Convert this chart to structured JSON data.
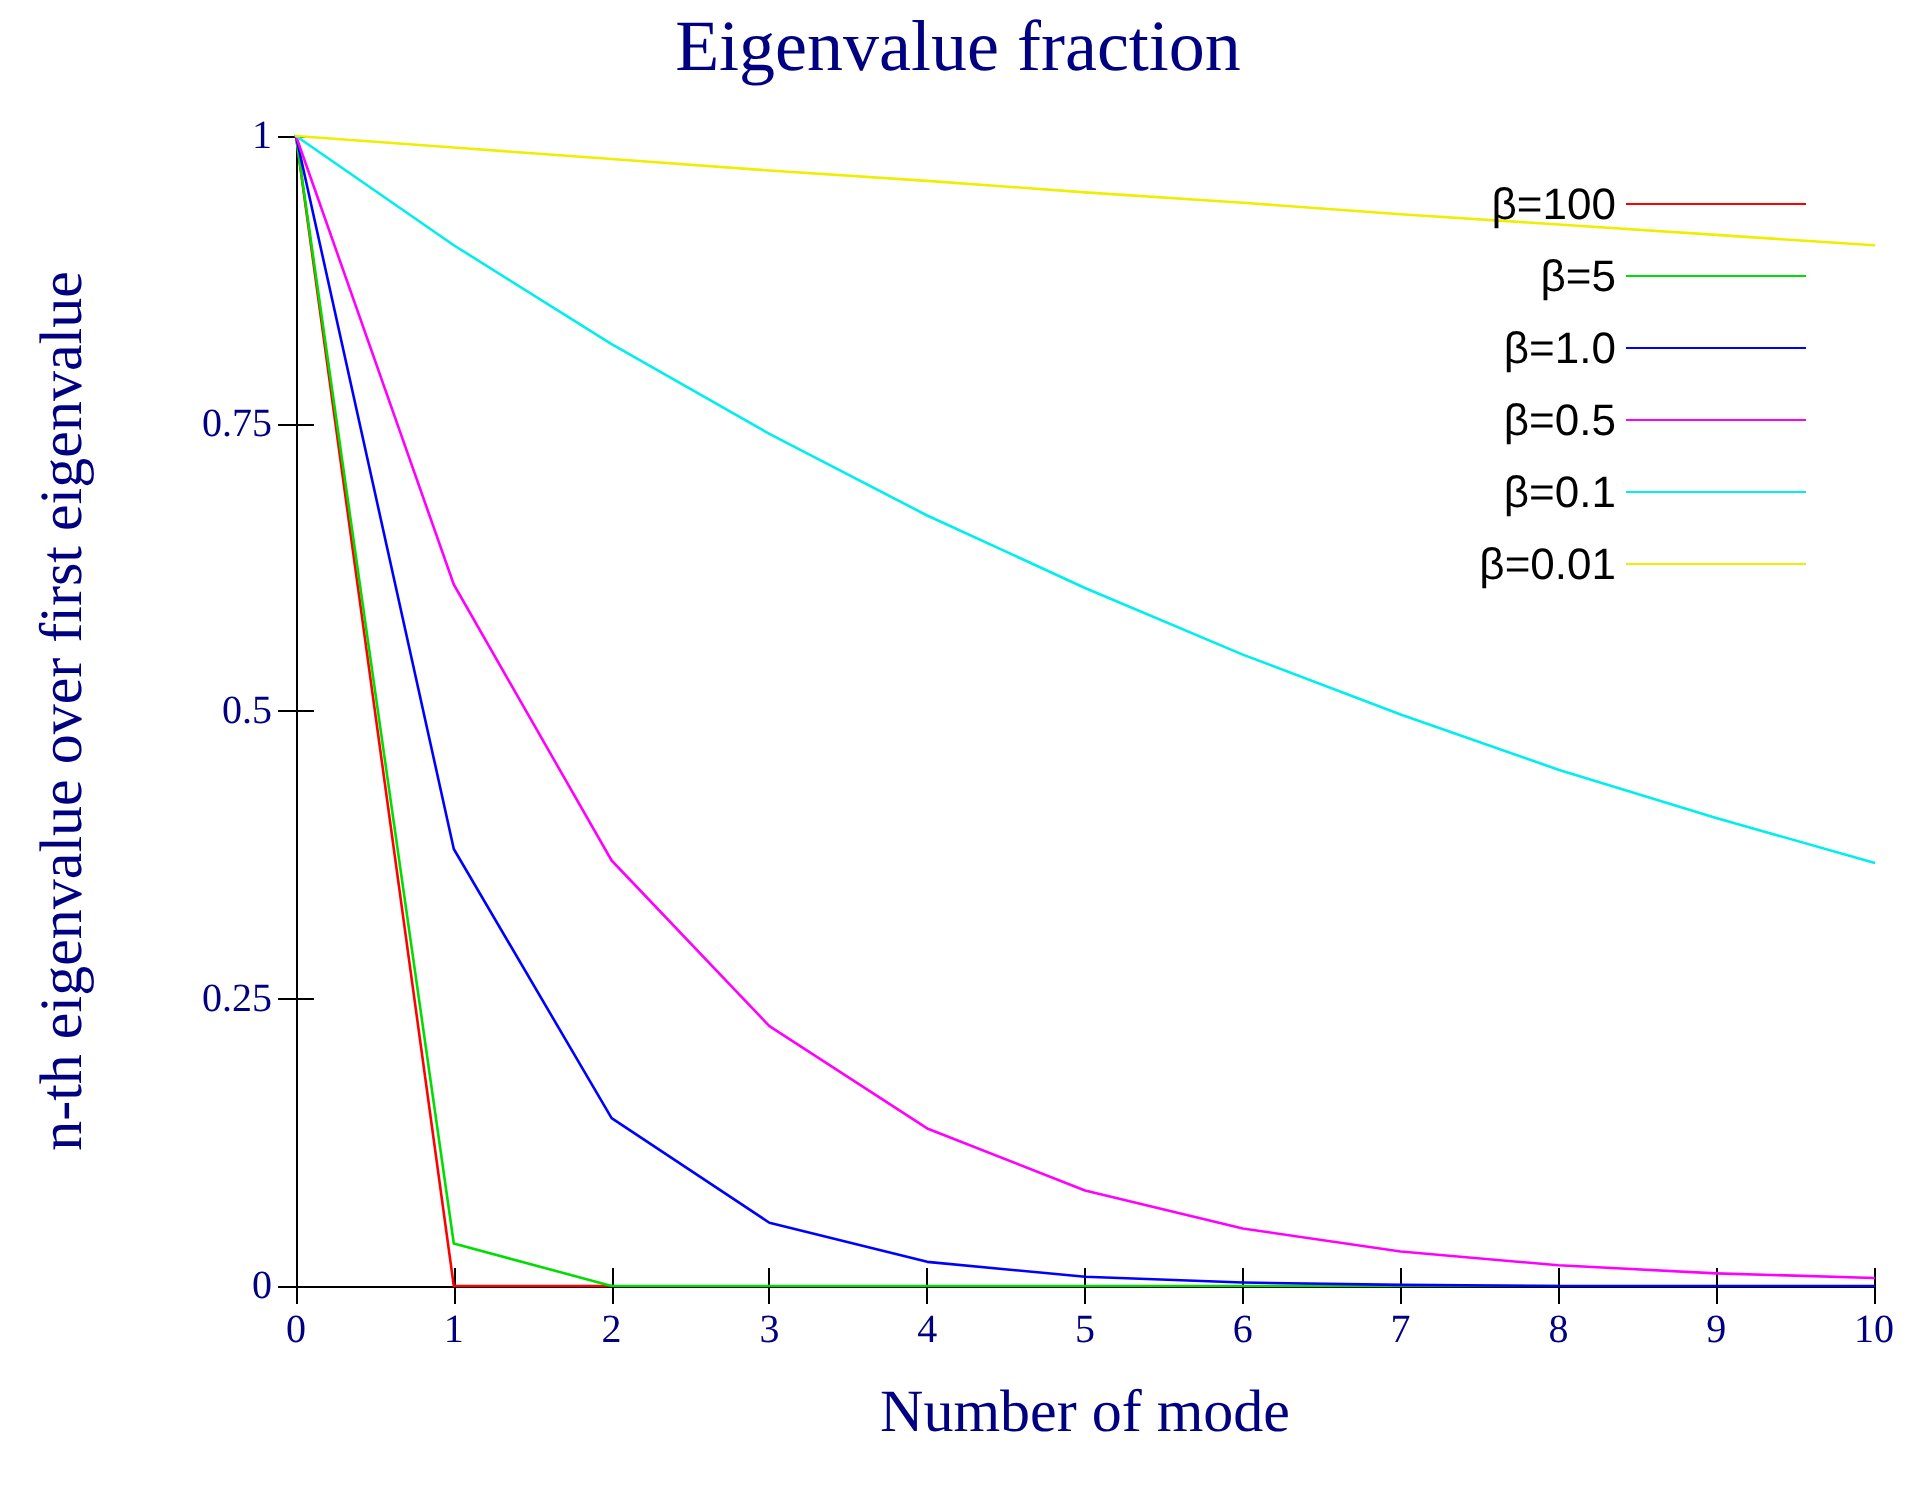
{
  "chart_data": {
    "type": "line",
    "title": "Eigenvalue fraction",
    "xlabel": "Number of mode",
    "ylabel": "n-th eigenvalue over first eigenvalue",
    "x": [
      0,
      1,
      2,
      3,
      4,
      5,
      6,
      7,
      8,
      9,
      10
    ],
    "series": [
      {
        "name": "β=100",
        "color": "#ff0000",
        "values": [
          1,
          0,
          0,
          null,
          null,
          null,
          null,
          null,
          null,
          null,
          null
        ]
      },
      {
        "name": "β=5",
        "color": "#00dd00",
        "values": [
          1,
          0.037,
          0,
          0,
          0,
          0,
          0,
          0,
          0,
          null,
          null
        ]
      },
      {
        "name": "β=1.0",
        "color": "#0000ff",
        "values": [
          1,
          0.38,
          0.146,
          0.055,
          0.021,
          0.008,
          0.003,
          0.001,
          0,
          0,
          0
        ]
      },
      {
        "name": "β=0.5",
        "color": "#ff00ff",
        "values": [
          1,
          0.61,
          0.37,
          0.226,
          0.137,
          0.083,
          0.05,
          0.03,
          0.018,
          0.011,
          0.007
        ]
      },
      {
        "name": "β=0.1",
        "color": "#00eeee",
        "values": [
          1,
          0.905,
          0.819,
          0.741,
          0.67,
          0.607,
          0.549,
          0.497,
          0.449,
          0.407,
          0.368
        ]
      },
      {
        "name": "β=0.01",
        "color": "#eeee00",
        "values": [
          1,
          0.99,
          0.98,
          0.97,
          0.961,
          0.951,
          0.942,
          0.932,
          0.923,
          0.914,
          0.905
        ]
      }
    ],
    "xlim": [
      0,
      10
    ],
    "xticks": [
      0,
      1,
      2,
      3,
      4,
      5,
      6,
      7,
      8,
      9,
      10
    ],
    "ylim": [
      0,
      1
    ],
    "yticks": [
      0,
      {
        "value": 0.25,
        "label": "0.25"
      },
      {
        "value": 0.5,
        "label": "0.5"
      },
      {
        "value": 0.75,
        "label": "0.75"
      },
      1
    ],
    "grid": false,
    "legend": "top right",
    "marker": "none",
    "line_style": "solid"
  }
}
